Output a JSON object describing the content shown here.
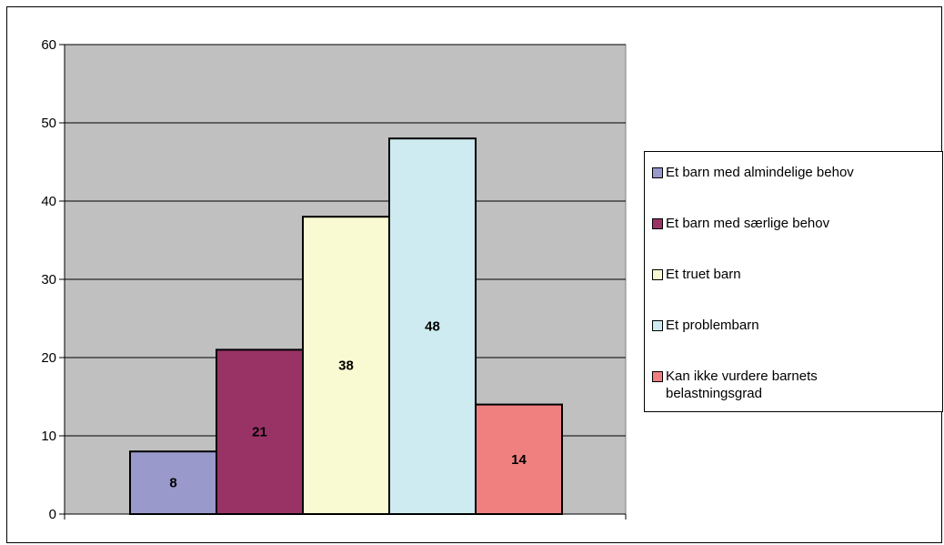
{
  "chart_data": {
    "type": "bar",
    "title": "",
    "xlabel": "",
    "ylabel": "",
    "ylim": [
      0,
      60
    ],
    "yticks": [
      0,
      10,
      20,
      30,
      40,
      50,
      60
    ],
    "grid": true,
    "legend_position": "right",
    "plot_background": "#c0c0c0",
    "series": [
      {
        "name": "Et barn med almindelige behov",
        "value": 8,
        "label": "8",
        "color": "#9999cc"
      },
      {
        "name": "Et barn med særlige behov",
        "value": 21,
        "label": "21",
        "color": "#993366"
      },
      {
        "name": "Et truet barn",
        "value": 38,
        "label": "38",
        "color": "#fafad2"
      },
      {
        "name": "Et problembarn",
        "value": 48,
        "label": "48",
        "color": "#cdebf0"
      },
      {
        "name": "Kan ikke vurdere barnets belastningsgrad",
        "value": 14,
        "label": "14",
        "color": "#f08080"
      }
    ]
  },
  "legend": {
    "items": [
      {
        "text_line1": "Et barn med almindelige behov",
        "text_line2": ""
      },
      {
        "text_line1": "Et barn med særlige behov",
        "text_line2": ""
      },
      {
        "text_line1": "Et truet barn",
        "text_line2": ""
      },
      {
        "text_line1": "Et problembarn",
        "text_line2": ""
      },
      {
        "text_line1": "Kan ikke vurdere barnets",
        "text_line2": "belastningsgrad"
      }
    ]
  }
}
